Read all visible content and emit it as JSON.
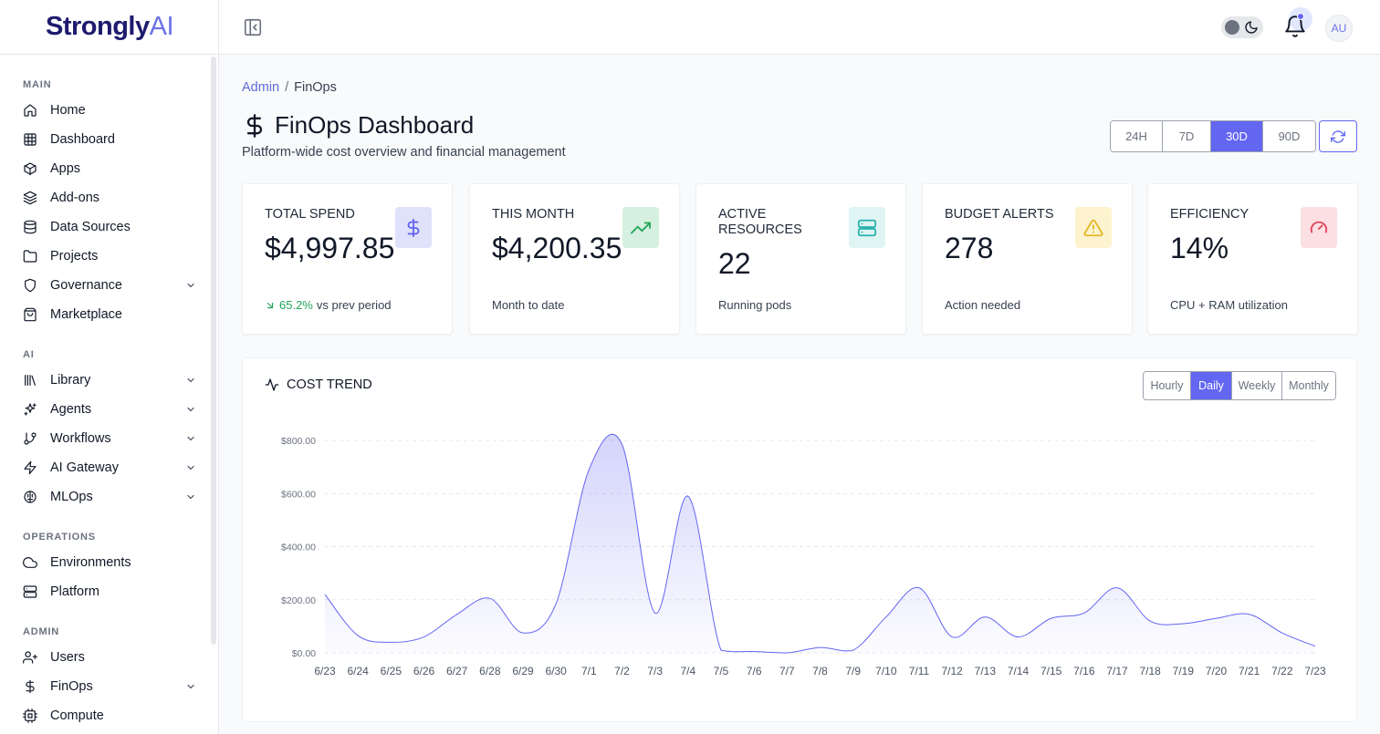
{
  "brand": {
    "name_main": "Strongly",
    "name_ai": "AI"
  },
  "sidebar": {
    "sections": {
      "main": "MAIN",
      "ai": "AI",
      "operations": "OPERATIONS",
      "admin": "ADMIN"
    },
    "items": [
      {
        "label": "Home",
        "icon": "home-icon"
      },
      {
        "label": "Dashboard",
        "icon": "grid-icon"
      },
      {
        "label": "Apps",
        "icon": "box-icon"
      },
      {
        "label": "Add-ons",
        "icon": "layers-icon"
      },
      {
        "label": "Data Sources",
        "icon": "database-icon"
      },
      {
        "label": "Projects",
        "icon": "folder-icon"
      },
      {
        "label": "Governance",
        "icon": "shield-icon",
        "expandable": true
      },
      {
        "label": "Marketplace",
        "icon": "shopping-bag-icon"
      },
      {
        "label": "Library",
        "icon": "library-icon",
        "expandable": true
      },
      {
        "label": "Agents",
        "icon": "sparkles-icon",
        "expandable": true
      },
      {
        "label": "Workflows",
        "icon": "git-branch-icon",
        "expandable": true
      },
      {
        "label": "AI Gateway",
        "icon": "zap-icon",
        "expandable": true
      },
      {
        "label": "MLOps",
        "icon": "brain-icon",
        "expandable": true
      },
      {
        "label": "Environments",
        "icon": "cloud-icon"
      },
      {
        "label": "Platform",
        "icon": "server-icon"
      },
      {
        "label": "Users",
        "icon": "user-plus-icon"
      },
      {
        "label": "FinOps",
        "icon": "dollar-icon",
        "expandable": true
      },
      {
        "label": "Compute",
        "icon": "cpu-icon"
      }
    ]
  },
  "topbar": {
    "avatar_initials": "AU"
  },
  "breadcrumb": {
    "parent": "Admin",
    "separator": "/",
    "current": "FinOps"
  },
  "page": {
    "title": "FinOps Dashboard",
    "subtitle": "Platform-wide cost overview and financial management"
  },
  "time_ranges": {
    "options": [
      "24H",
      "7D",
      "30D",
      "90D"
    ],
    "selected": "30D"
  },
  "cards": [
    {
      "label": "TOTAL SPEND",
      "value": "$4,997.85",
      "trend": "65.2%",
      "foot": "vs prev period",
      "icon": "dollar-icon",
      "color": "#6366f1",
      "bg": "#e0e2fb"
    },
    {
      "label": "THIS MONTH",
      "value": "$4,200.35",
      "foot": "Month to date",
      "icon": "trending-up-icon",
      "color": "#22a65a",
      "bg": "#d6f0df"
    },
    {
      "label": "ACTIVE RESOURCES",
      "value": "22",
      "foot": "Running pods",
      "icon": "server-icon",
      "color": "#2bb3ad",
      "bg": "#dff5f3"
    },
    {
      "label": "BUDGET ALERTS",
      "value": "278",
      "foot": "Action needed",
      "icon": "alert-triangle-icon",
      "color": "#e5b524",
      "bg": "#fdf3cf"
    },
    {
      "label": "EFFICIENCY",
      "value": "14%",
      "foot": "CPU + RAM utilization",
      "icon": "gauge-icon",
      "color": "#e0455d",
      "bg": "#fbdfe3"
    }
  ],
  "chart_section": {
    "title": "COST TREND",
    "granularity": {
      "options": [
        "Hourly",
        "Daily",
        "Weekly",
        "Monthly"
      ],
      "selected": "Daily"
    }
  },
  "chart_data": {
    "type": "area",
    "title": "COST TREND",
    "x": [
      "6/23",
      "6/24",
      "6/25",
      "6/26",
      "6/27",
      "6/28",
      "6/29",
      "6/30",
      "7/1",
      "7/2",
      "7/3",
      "7/4",
      "7/5",
      "7/6",
      "7/7",
      "7/8",
      "7/9",
      "7/10",
      "7/11",
      "7/12",
      "7/13",
      "7/14",
      "7/15",
      "7/16",
      "7/17",
      "7/18",
      "7/19",
      "7/20",
      "7/21",
      "7/22",
      "7/23"
    ],
    "series": [
      {
        "values": [
          220,
          65,
          40,
          60,
          145,
          205,
          75,
          185,
          690,
          785,
          150,
          590,
          10,
          5,
          0,
          20,
          10,
          135,
          245,
          60,
          135,
          60,
          130,
          150,
          245,
          120,
          110,
          130,
          145,
          75,
          25
        ]
      }
    ],
    "y_ticks": [
      "$0.00",
      "$200.00",
      "$400.00",
      "$600.00",
      "$800.00"
    ],
    "ylim": [
      0,
      800
    ],
    "grid": true,
    "color": "#6366f1"
  }
}
